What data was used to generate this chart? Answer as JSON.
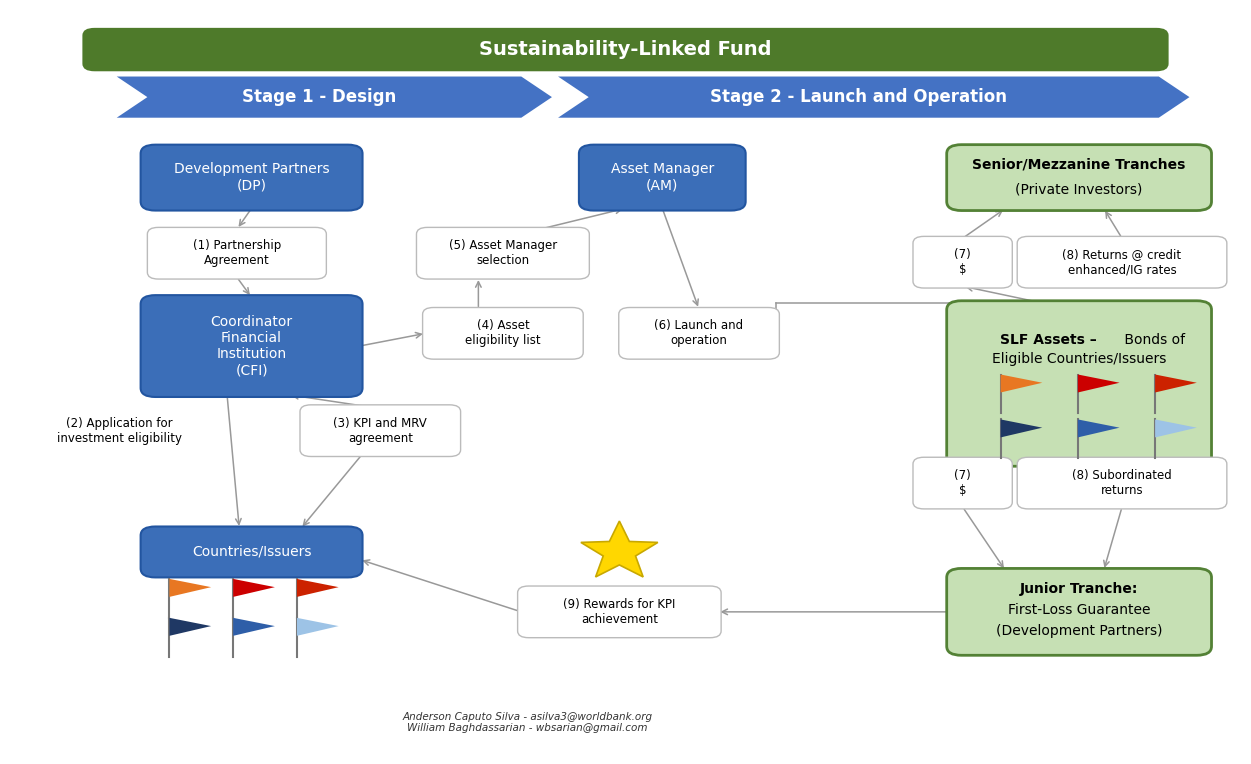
{
  "title": "Sustainability-Linked Fund",
  "stage1_label": "Stage 1 - Design",
  "stage2_label": "Stage 2 - Launch and Operation",
  "blue_box_color": "#3B6EB8",
  "green_box_color": "#C6E0B4",
  "green_box_border_color": "#538135",
  "header_green": "#4E7A2A",
  "header_blue": "#4472C4",
  "arrow_color": "#999999",
  "footer_text": "Anderson Caputo Silva - asilva3@worldbank.org\nWilliam Baghdassarian - wbsarian@gmail.com",
  "flag_colors_top": [
    "#E87722",
    "#CC0000",
    "#CC2200"
  ],
  "flag_colors_bottom": [
    "#1F3864",
    "#2E5EA8",
    "#9DC3E6"
  ],
  "flag_colors_top_right": [
    "#E87722",
    "#CC0000",
    "#CC2200"
  ],
  "flag_colors_bottom_right": [
    "#1F3864",
    "#2E5EA8",
    "#9DC3E6"
  ]
}
